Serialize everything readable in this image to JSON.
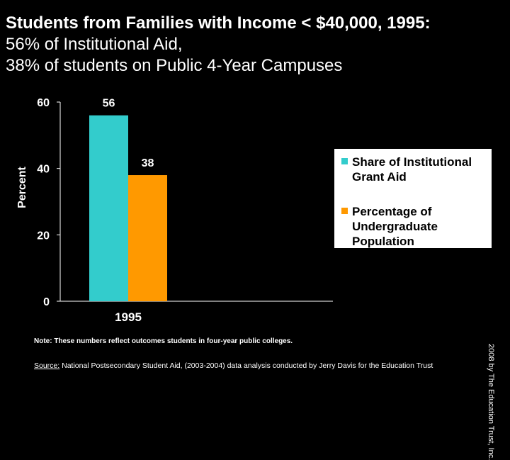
{
  "title": {
    "line1": "Students from Families with Income < $40,000, 1995:",
    "line2": "56% of Institutional Aid,",
    "line3": "38% of students on Public 4-Year Campuses"
  },
  "chart_data": {
    "type": "bar",
    "categories": [
      "1995"
    ],
    "series": [
      {
        "name": "Share of Institutional Grant Aid",
        "values": [
          56
        ],
        "color": "#33cccc"
      },
      {
        "name": "Percentage of Undergraduate Population",
        "values": [
          38
        ],
        "color": "#ff9900"
      }
    ],
    "ylabel": "Percent",
    "ylim": [
      0,
      60
    ],
    "yticks": [
      0,
      20,
      40,
      60
    ],
    "data_labels": [
      "56",
      "38"
    ],
    "grid": false,
    "legend_position": "right"
  },
  "note": "Note:  These numbers reflect outcomes students in four-year public colleges.",
  "source": {
    "label": "Source:",
    "text": " National Postsecondary Student Aid, (2003-2004) data analysis conducted by Jerry Davis for the Education Trust"
  },
  "copyright": "2008 by The Education Trust, Inc."
}
